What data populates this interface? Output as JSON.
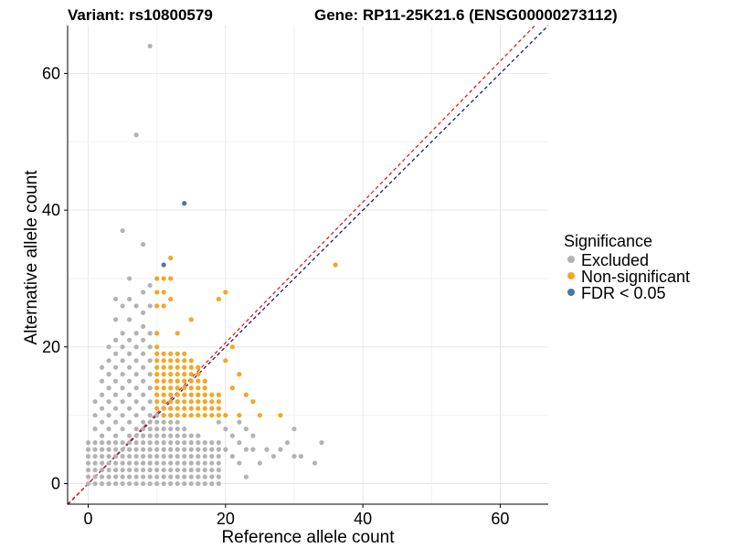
{
  "chart_data": {
    "type": "scatter",
    "title_left": "Variant: rs10800579",
    "title_right": "Gene: RP11-25K21.6 (ENSG00000273112)",
    "xlabel": "Reference allele count",
    "ylabel": "Alternative allele count",
    "xlim": [
      -3,
      67
    ],
    "ylim": [
      -3,
      67
    ],
    "xticks": [
      0,
      20,
      40,
      60
    ],
    "yticks": [
      0,
      20,
      40,
      60
    ],
    "grid": true,
    "legend": {
      "title": "Significance",
      "placement": "right",
      "entries": [
        {
          "label": "Excluded",
          "color": "#b3b3b3"
        },
        {
          "label": "Non-significant",
          "color": "#f5a623"
        },
        {
          "label": "FDR < 0.05",
          "color": "#4a76a8"
        }
      ]
    },
    "reference_lines": [
      {
        "name": "identity",
        "slope": 1,
        "intercept": 0,
        "color": "#1f1f5e",
        "style": "dashed"
      },
      {
        "name": "fit",
        "slope": 1.03,
        "intercept": 0,
        "color": "#e0201b",
        "style": "dashed"
      }
    ],
    "excluded_block": {
      "x_max": 19,
      "y_max": 6,
      "y_min": 0
    },
    "excluded_triangle": {
      "x_min": 0,
      "x_max": 12,
      "note": "dense points where y <= x (approx)"
    },
    "series": [
      {
        "name": "Excluded",
        "color": "#b3b3b3",
        "points": [
          [
            9,
            64
          ],
          [
            7,
            51
          ],
          [
            5,
            37
          ],
          [
            8,
            35
          ],
          [
            6,
            30
          ],
          [
            9,
            29
          ],
          [
            8,
            28
          ],
          [
            6,
            27
          ],
          [
            4,
            27
          ],
          [
            5,
            26
          ],
          [
            7,
            26
          ],
          [
            9,
            26
          ],
          [
            8,
            25
          ],
          [
            6,
            24
          ],
          [
            4,
            24
          ],
          [
            8,
            23
          ],
          [
            7,
            22
          ],
          [
            5,
            22
          ],
          [
            9,
            22
          ],
          [
            4,
            21
          ],
          [
            6,
            21
          ],
          [
            8,
            21
          ],
          [
            3,
            20
          ],
          [
            5,
            20
          ],
          [
            7,
            20
          ],
          [
            9,
            20
          ],
          [
            4,
            19
          ],
          [
            6,
            19
          ],
          [
            8,
            19
          ],
          [
            3,
            18
          ],
          [
            5,
            18
          ],
          [
            7,
            18
          ],
          [
            9,
            18
          ],
          [
            2,
            17
          ],
          [
            4,
            17
          ],
          [
            6,
            17
          ],
          [
            8,
            17
          ],
          [
            3,
            16
          ],
          [
            5,
            16
          ],
          [
            7,
            16
          ],
          [
            9,
            16
          ],
          [
            2,
            15
          ],
          [
            4,
            15
          ],
          [
            6,
            15
          ],
          [
            8,
            15
          ],
          [
            3,
            14
          ],
          [
            5,
            14
          ],
          [
            7,
            14
          ],
          [
            9,
            14
          ],
          [
            2,
            13
          ],
          [
            4,
            13
          ],
          [
            6,
            13
          ],
          [
            8,
            13
          ],
          [
            1,
            12
          ],
          [
            3,
            12
          ],
          [
            5,
            12
          ],
          [
            7,
            12
          ],
          [
            9,
            12
          ],
          [
            2,
            11
          ],
          [
            4,
            11
          ],
          [
            6,
            11
          ],
          [
            8,
            11
          ],
          [
            1,
            10
          ],
          [
            3,
            10
          ],
          [
            5,
            10
          ],
          [
            7,
            10
          ],
          [
            9,
            10
          ],
          [
            2,
            9
          ],
          [
            4,
            9
          ],
          [
            6,
            9
          ],
          [
            8,
            9
          ],
          [
            1,
            8
          ],
          [
            3,
            8
          ],
          [
            5,
            8
          ],
          [
            7,
            8
          ],
          [
            9,
            8
          ],
          [
            2,
            7
          ],
          [
            4,
            7
          ],
          [
            6,
            7
          ],
          [
            8,
            7
          ],
          [
            10,
            7
          ],
          [
            12,
            7
          ],
          [
            14,
            7
          ],
          [
            16,
            7
          ],
          [
            1,
            6
          ],
          [
            3,
            6
          ],
          [
            5,
            6
          ],
          [
            20,
            5
          ],
          [
            21,
            4
          ],
          [
            22,
            3
          ],
          [
            23,
            5
          ],
          [
            25,
            3
          ],
          [
            26,
            5
          ],
          [
            27,
            4
          ],
          [
            28,
            5
          ],
          [
            29,
            6
          ],
          [
            30,
            4
          ],
          [
            31,
            4
          ],
          [
            33,
            3
          ],
          [
            34,
            6
          ],
          [
            23,
            1
          ],
          [
            19,
            9
          ],
          [
            22,
            9
          ],
          [
            23,
            8
          ],
          [
            24,
            7
          ],
          [
            20,
            8
          ],
          [
            21,
            7
          ],
          [
            22,
            6
          ],
          [
            24,
            5
          ],
          [
            30,
            8
          ]
        ]
      },
      {
        "name": "Non-significant",
        "color": "#f5a623",
        "points": [
          [
            12,
            33
          ],
          [
            10,
            30
          ],
          [
            11,
            30
          ],
          [
            12,
            30
          ],
          [
            10,
            28
          ],
          [
            11,
            28
          ],
          [
            20,
            28
          ],
          [
            12,
            27
          ],
          [
            19,
            27
          ],
          [
            10,
            26
          ],
          [
            11,
            26
          ],
          [
            15,
            24
          ],
          [
            10,
            22
          ],
          [
            13,
            22
          ],
          [
            10,
            20
          ],
          [
            21,
            20
          ],
          [
            10,
            19
          ],
          [
            11,
            19
          ],
          [
            12,
            19
          ],
          [
            13,
            19
          ],
          [
            14,
            19
          ],
          [
            10,
            18
          ],
          [
            11,
            18
          ],
          [
            12,
            18
          ],
          [
            13,
            18
          ],
          [
            14,
            18
          ],
          [
            15,
            18
          ],
          [
            20,
            18
          ],
          [
            10,
            17
          ],
          [
            11,
            17
          ],
          [
            12,
            17
          ],
          [
            13,
            17
          ],
          [
            14,
            17
          ],
          [
            15,
            17
          ],
          [
            16,
            17
          ],
          [
            10,
            16
          ],
          [
            11,
            16
          ],
          [
            12,
            16
          ],
          [
            13,
            16
          ],
          [
            14,
            16
          ],
          [
            15,
            16
          ],
          [
            16,
            16
          ],
          [
            10,
            15
          ],
          [
            11,
            15
          ],
          [
            12,
            15
          ],
          [
            13,
            15
          ],
          [
            14,
            15
          ],
          [
            15,
            15
          ],
          [
            16,
            15
          ],
          [
            17,
            15
          ],
          [
            10,
            14
          ],
          [
            11,
            14
          ],
          [
            12,
            14
          ],
          [
            13,
            14
          ],
          [
            14,
            14
          ],
          [
            15,
            14
          ],
          [
            16,
            14
          ],
          [
            17,
            14
          ],
          [
            10,
            13
          ],
          [
            11,
            13
          ],
          [
            12,
            13
          ],
          [
            13,
            13
          ],
          [
            14,
            13
          ],
          [
            15,
            13
          ],
          [
            16,
            13
          ],
          [
            17,
            13
          ],
          [
            18,
            13
          ],
          [
            19,
            13
          ],
          [
            10,
            12
          ],
          [
            11,
            12
          ],
          [
            12,
            12
          ],
          [
            13,
            12
          ],
          [
            14,
            12
          ],
          [
            15,
            12
          ],
          [
            16,
            12
          ],
          [
            17,
            12
          ],
          [
            18,
            12
          ],
          [
            19,
            12
          ],
          [
            10,
            11
          ],
          [
            11,
            11
          ],
          [
            12,
            11
          ],
          [
            13,
            11
          ],
          [
            14,
            11
          ],
          [
            15,
            11
          ],
          [
            16,
            11
          ],
          [
            17,
            11
          ],
          [
            18,
            11
          ],
          [
            19,
            11
          ],
          [
            11,
            10
          ],
          [
            12,
            10
          ],
          [
            13,
            10
          ],
          [
            14,
            10
          ],
          [
            15,
            10
          ],
          [
            16,
            10
          ],
          [
            17,
            10
          ],
          [
            18,
            10
          ],
          [
            19,
            10
          ],
          [
            22,
            10
          ],
          [
            25,
            10
          ],
          [
            28,
            10
          ],
          [
            24,
            12
          ],
          [
            23,
            13
          ],
          [
            21,
            14
          ],
          [
            22,
            16
          ],
          [
            36,
            32
          ],
          [
            18,
            10
          ],
          [
            20,
            10
          ]
        ]
      },
      {
        "name": "FDR < 0.05",
        "color": "#4a76a8",
        "points": [
          [
            14,
            41
          ],
          [
            11,
            32
          ]
        ]
      }
    ]
  }
}
